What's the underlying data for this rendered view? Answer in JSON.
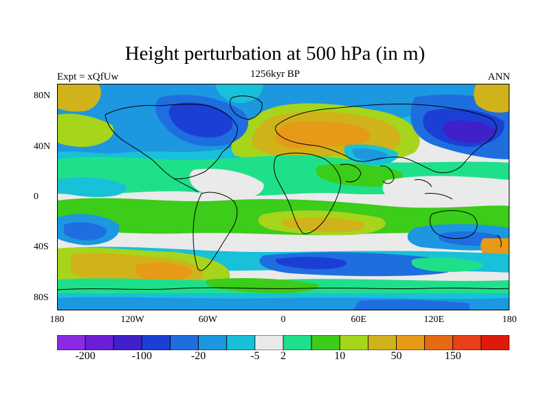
{
  "title": "Height perturbation at 500 hPa (in m)",
  "left_label": "Expt = xQfUw",
  "center_label": "1256kyr BP",
  "right_label": "ANN",
  "x_ticks": [
    "180",
    "120W",
    "60W",
    "0",
    "60E",
    "120E",
    "180"
  ],
  "y_ticks": [
    "80N",
    "40N",
    "0",
    "40S",
    "80S"
  ],
  "y_tick_lats": [
    80,
    40,
    0,
    -40,
    -80
  ],
  "colorbar": {
    "colors": [
      "#8a2be2",
      "#6a1fd6",
      "#4020c8",
      "#1b3fd4",
      "#1e6ee0",
      "#1c97e0",
      "#18c0d8",
      "#eaeaea",
      "#1fe08a",
      "#3ccc1a",
      "#a6d51c",
      "#d0b21a",
      "#e69a18",
      "#e56a14",
      "#e84018",
      "#e01a0a"
    ],
    "labels": [
      "-200",
      "-100",
      "-20",
      "-5",
      "2",
      "10",
      "50",
      "150"
    ],
    "label_boundaries": [
      1,
      3,
      5,
      7,
      8,
      10,
      12,
      14
    ]
  },
  "map_colors": {
    "neutral": "#eaeaea",
    "low1": "#18c0d8",
    "low2": "#1c97e0",
    "low3": "#1e6ee0",
    "low4": "#1b3fd4",
    "low5": "#4020c8",
    "pos1": "#1fe08a",
    "pos2": "#3ccc1a",
    "pos3": "#a6d51c",
    "pos4": "#d0b21a",
    "pos5": "#e69a18",
    "coast": "#000000"
  }
}
